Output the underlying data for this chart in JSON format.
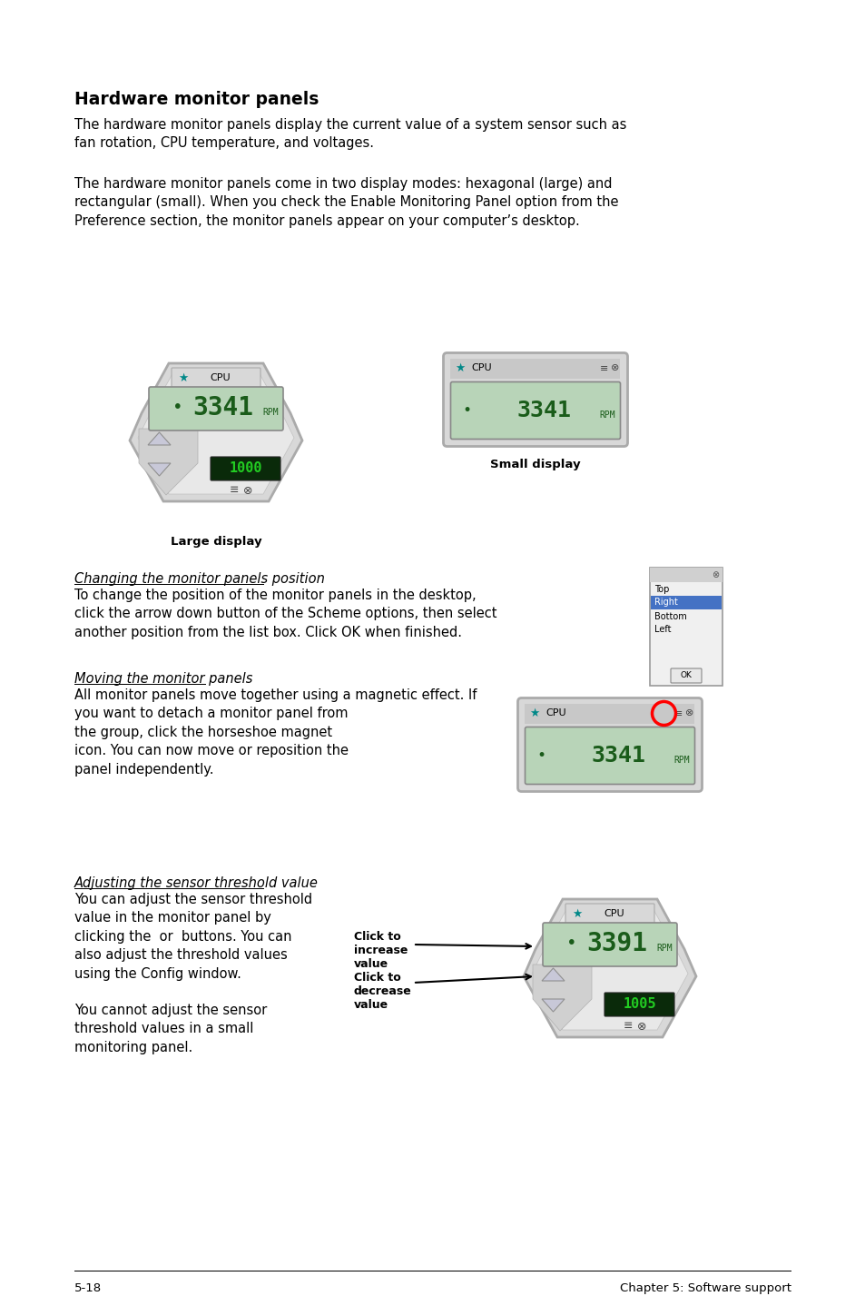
{
  "bg_color": "#ffffff",
  "title": "Hardware monitor panels",
  "para1": "The hardware monitor panels display the current value of a system sensor such as\nfan rotation, CPU temperature, and voltages.",
  "para2": "The hardware monitor panels come in two display modes: hexagonal (large) and\nrectangular (small). When you check the Enable Monitoring Panel option from the\nPreference section, the monitor panels appear on your computer’s desktop.",
  "label_large": "Large display",
  "label_small": "Small display",
  "section1_title": "Changing the monitor panels position",
  "section1_body": "To change the position of the monitor panels in the desktop,\nclick the arrow down button of the Scheme options, then select\nanother position from the list box. Click OK when finished.",
  "section2_title": "Moving the monitor panels",
  "section2_body": "All monitor panels move together using a magnetic effect. If\nyou want to detach a monitor panel from\nthe group, click the horseshoe magnet\nicon. You can now move or reposition the\npanel independently.",
  "section3_title": "Adjusting the sensor threshold value",
  "section3_body1": "You can adjust the sensor threshold\nvalue in the monitor panel by\nclicking the  or  buttons. You can\nalso adjust the threshold values\nusing the Config window.",
  "section3_body2": "You cannot adjust the sensor\nthreshold values in a small\nmonitoring panel.",
  "click_increase": "Click to\nincrease\nvalue",
  "click_decrease": "Click to\ndecrease\nvalue",
  "footer_left": "5-18",
  "footer_right": "Chapter 5: Software support",
  "display_color_bg": "#b8d4b8",
  "display_color_text": "#1a5c1a",
  "panel_outer": "#d4d4d4",
  "panel_mid": "#c0c0c0",
  "panel_inner": "#b8b8b8",
  "listbox_highlight": "#4472c4",
  "listbox_items": [
    "Top",
    "Right",
    "Bottom",
    "Left"
  ]
}
